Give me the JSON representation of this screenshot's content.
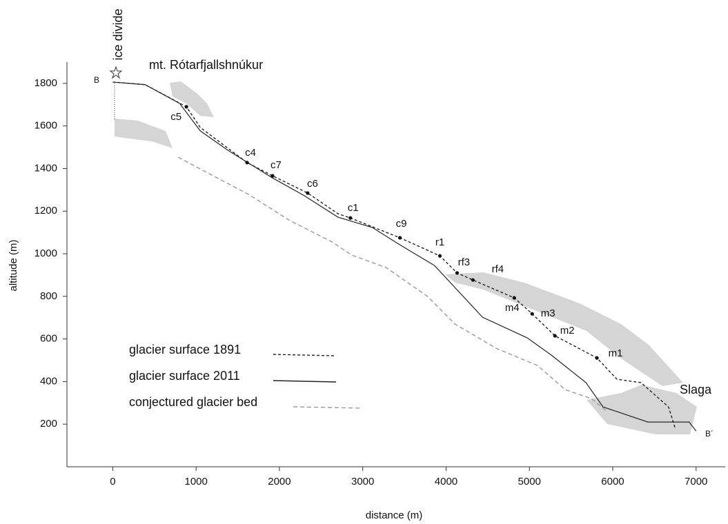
{
  "chart_data": {
    "type": "line",
    "x_label": "distance (m)",
    "y_label": "altitude (m)",
    "xlim": [
      -550,
      7350
    ],
    "ylim": [
      0,
      1900
    ],
    "xticks": [
      0,
      1000,
      2000,
      3000,
      4000,
      5000,
      6000,
      7000
    ],
    "yticks": [
      200,
      400,
      600,
      800,
      1000,
      1200,
      1400,
      1600,
      1800
    ],
    "grid": false,
    "legend": "lower left",
    "series": [
      {
        "name": "glacier surface 1891",
        "color": "#222222",
        "style": "dashed",
        "x": [
          0,
          388,
          884,
          1050,
          1380,
          1612,
          1917,
          2339,
          2702,
          2851,
          3446,
          3926,
          4132,
          4322,
          4818,
          5033,
          5306,
          5810,
          6050,
          6339,
          6669,
          6752
        ],
        "values": [
          1806,
          1794,
          1690,
          1593,
          1496,
          1428,
          1366,
          1285,
          1188,
          1168,
          1075,
          990,
          910,
          877,
          793,
          718,
          615,
          511,
          411,
          395,
          281,
          178
        ]
      },
      {
        "name": "glacier surface 2011",
        "color": "#222222",
        "style": "solid",
        "x": [
          0,
          388,
          802,
          1050,
          1380,
          1917,
          2289,
          2702,
          3116,
          3446,
          3860,
          4438,
          4975,
          5264,
          5678,
          5884,
          6421,
          6917,
          7000
        ],
        "values": [
          1806,
          1794,
          1706,
          1577,
          1486,
          1356,
          1275,
          1172,
          1123,
          1042,
          945,
          702,
          605,
          524,
          395,
          281,
          210,
          210,
          168
        ]
      },
      {
        "name": "conjectured glacier bed",
        "color": "#999999",
        "style": "dashed-gray",
        "x": [
          785,
          1050,
          1628,
          2124,
          2620,
          2868,
          3281,
          3777,
          4107,
          4603,
          5099,
          5430,
          5744,
          5926
        ],
        "values": [
          1453,
          1398,
          1279,
          1156,
          1058,
          994,
          935,
          800,
          670,
          556,
          475,
          362,
          320,
          262
        ]
      }
    ],
    "labeled_points": [
      {
        "label": "c5",
        "x": 884,
        "y": 1690
      },
      {
        "label": "c4",
        "x": 1612,
        "y": 1428
      },
      {
        "label": "c7",
        "x": 1917,
        "y": 1366
      },
      {
        "label": "c6",
        "x": 2339,
        "y": 1285
      },
      {
        "label": "c1",
        "x": 2851,
        "y": 1168
      },
      {
        "label": "c9",
        "x": 3446,
        "y": 1075
      },
      {
        "label": "r1",
        "x": 3926,
        "y": 990
      },
      {
        "label": "rf3",
        "x": 4132,
        "y": 910
      },
      {
        "label": "rf4",
        "x": 4322,
        "y": 877
      },
      {
        "label": "m4",
        "x": 4818,
        "y": 793
      },
      {
        "label": "m3",
        "x": 5033,
        "y": 718
      },
      {
        "label": "m2",
        "x": 5306,
        "y": 615
      },
      {
        "label": "m1",
        "x": 5810,
        "y": 511
      }
    ],
    "annotations": {
      "ice_divide": "ice divide",
      "peak": "mt. Rótarfjallshnúkur",
      "end_right": "Slaga",
      "start_label": "B",
      "end_label": "B´"
    }
  }
}
